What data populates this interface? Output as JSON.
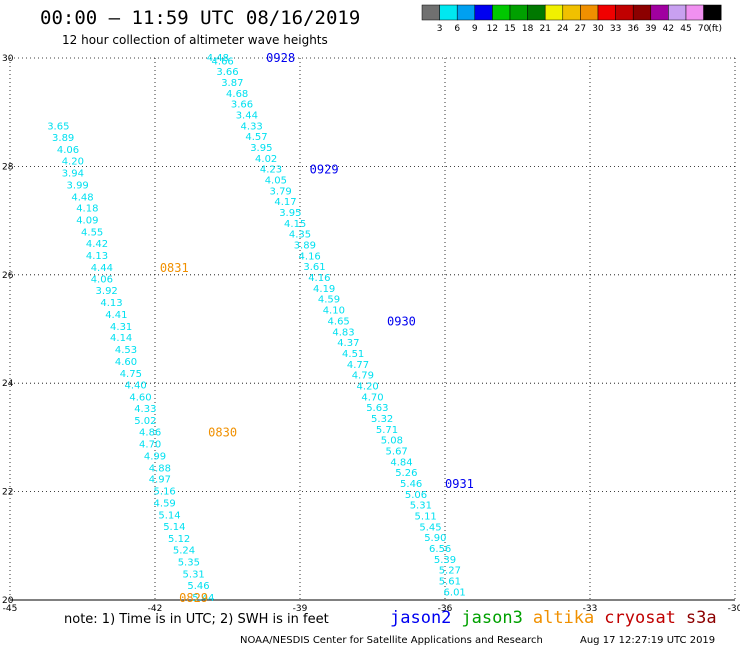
{
  "header": {
    "title": "00:00 – 11:59 UTC 08/16/2019",
    "subtitle": "12 hour collection of altimeter wave heights"
  },
  "color_scale": {
    "colors": [
      "#707070",
      "#00e8f0",
      "#00a0f0",
      "#0000f0",
      "#00c800",
      "#00a000",
      "#007800",
      "#f0f000",
      "#f0c000",
      "#f09000",
      "#f00000",
      "#c00000",
      "#8c0000",
      "#a000a0",
      "#c8a0f0",
      "#f090f0",
      "#000000"
    ],
    "labels": [
      "3",
      "6",
      "9",
      "12",
      "15",
      "18",
      "21",
      "24",
      "27",
      "30",
      "33",
      "36",
      "39",
      "42",
      "45",
      "70"
    ],
    "unit": "(ft)"
  },
  "chart_data": {
    "type": "scatter",
    "xlim": [
      -45,
      -30
    ],
    "ylim": [
      20,
      30
    ],
    "xticks": [
      "-45",
      "-42",
      "-39",
      "-36",
      "-33",
      "-30"
    ],
    "yticks": [
      "30",
      "28",
      "26",
      "24",
      "22",
      "20"
    ],
    "grid": true,
    "marker_color": "#00e0f0",
    "series": [
      {
        "name": "altika",
        "color": "#f09000",
        "points": [
          {
            "lon": -41.0,
            "lat": 20.04,
            "swh": "5.44"
          },
          {
            "lon": -41.1,
            "lat": 20.26,
            "swh": "5.46"
          },
          {
            "lon": -41.2,
            "lat": 20.47,
            "swh": "5.31"
          },
          {
            "lon": -41.3,
            "lat": 20.69,
            "swh": "5.35"
          },
          {
            "lon": -41.4,
            "lat": 20.91,
            "swh": "5.24"
          },
          {
            "lon": -41.5,
            "lat": 21.13,
            "swh": "5.12"
          },
          {
            "lon": -41.6,
            "lat": 21.35,
            "swh": "5.14"
          },
          {
            "lon": -41.7,
            "lat": 21.56,
            "swh": "5.14"
          },
          {
            "lon": -41.8,
            "lat": 21.78,
            "swh": "4.59"
          },
          {
            "lon": -41.8,
            "lat": 22.0,
            "swh": "5.16"
          },
          {
            "lon": -41.9,
            "lat": 22.22,
            "swh": "4.97"
          },
          {
            "lon": -41.9,
            "lat": 22.43,
            "swh": "4.88"
          },
          {
            "lon": -42.0,
            "lat": 22.65,
            "swh": "4.99"
          },
          {
            "lon": -42.1,
            "lat": 22.87,
            "swh": "4.70"
          },
          {
            "lon": -42.1,
            "lat": 23.09,
            "swh": "4.86"
          },
          {
            "lon": -42.2,
            "lat": 23.3,
            "swh": "5.02"
          },
          {
            "lon": -42.2,
            "lat": 23.52,
            "swh": "4.33"
          },
          {
            "lon": -42.3,
            "lat": 23.74,
            "swh": "4.60"
          },
          {
            "lon": -42.4,
            "lat": 23.96,
            "swh": "4.40"
          },
          {
            "lon": -42.5,
            "lat": 24.17,
            "swh": "4.75"
          },
          {
            "lon": -42.6,
            "lat": 24.39,
            "swh": "4.60"
          },
          {
            "lon": -42.6,
            "lat": 24.61,
            "swh": "4.53"
          },
          {
            "lon": -42.7,
            "lat": 24.83,
            "swh": "4.14"
          },
          {
            "lon": -42.7,
            "lat": 25.04,
            "swh": "4.31"
          },
          {
            "lon": -42.8,
            "lat": 25.26,
            "swh": "4.41"
          },
          {
            "lon": -42.9,
            "lat": 25.48,
            "swh": "4.13"
          },
          {
            "lon": -43.0,
            "lat": 25.7,
            "swh": "3.92"
          },
          {
            "lon": -43.1,
            "lat": 25.91,
            "swh": "4.06"
          },
          {
            "lon": -43.1,
            "lat": 26.13,
            "swh": "4.44"
          },
          {
            "lon": -43.2,
            "lat": 26.35,
            "swh": "4.13"
          },
          {
            "lon": -43.2,
            "lat": 26.57,
            "swh": "4.42"
          },
          {
            "lon": -43.3,
            "lat": 26.78,
            "swh": "4.55"
          },
          {
            "lon": -43.4,
            "lat": 27.0,
            "swh": "4.09"
          },
          {
            "lon": -43.4,
            "lat": 27.22,
            "swh": "4.18"
          },
          {
            "lon": -43.5,
            "lat": 27.43,
            "swh": "4.48"
          },
          {
            "lon": -43.6,
            "lat": 27.65,
            "swh": "3.99"
          },
          {
            "lon": -43.7,
            "lat": 27.87,
            "swh": "3.94"
          },
          {
            "lon": -43.7,
            "lat": 28.09,
            "swh": "4.20"
          },
          {
            "lon": -43.8,
            "lat": 28.3,
            "swh": "4.06"
          },
          {
            "lon": -43.9,
            "lat": 28.52,
            "swh": "3.89"
          },
          {
            "lon": -44.0,
            "lat": 28.74,
            "swh": "3.65"
          }
        ],
        "time_labels": [
          {
            "text": "0829",
            "lon": -41.5,
            "lat": 20.04
          },
          {
            "text": "0830",
            "lon": -40.9,
            "lat": 23.09
          },
          {
            "text": "0831",
            "lon": -41.9,
            "lat": 26.13
          }
        ]
      },
      {
        "name": "jason2",
        "color": "#0000f0",
        "points": [
          {
            "lon": -35.8,
            "lat": 20.14,
            "swh": "6.01"
          },
          {
            "lon": -35.9,
            "lat": 20.34,
            "swh": "5.61"
          },
          {
            "lon": -35.9,
            "lat": 20.54,
            "swh": "5.27"
          },
          {
            "lon": -36.0,
            "lat": 20.74,
            "swh": "5.39"
          },
          {
            "lon": -36.1,
            "lat": 20.94,
            "swh": "6.56"
          },
          {
            "lon": -36.2,
            "lat": 21.14,
            "swh": "5.90"
          },
          {
            "lon": -36.3,
            "lat": 21.34,
            "swh": "5.45"
          },
          {
            "lon": -36.4,
            "lat": 21.54,
            "swh": "5.11"
          },
          {
            "lon": -36.5,
            "lat": 21.74,
            "swh": "5.31"
          },
          {
            "lon": -36.6,
            "lat": 21.94,
            "swh": "5.06"
          },
          {
            "lon": -36.7,
            "lat": 22.14,
            "swh": "5.46"
          },
          {
            "lon": -36.8,
            "lat": 22.34,
            "swh": "5.26"
          },
          {
            "lon": -36.9,
            "lat": 22.54,
            "swh": "4.84"
          },
          {
            "lon": -37.0,
            "lat": 22.74,
            "swh": "5.67"
          },
          {
            "lon": -37.1,
            "lat": 22.94,
            "swh": "5.08"
          },
          {
            "lon": -37.2,
            "lat": 23.14,
            "swh": "5.71"
          },
          {
            "lon": -37.3,
            "lat": 23.34,
            "swh": "5.32"
          },
          {
            "lon": -37.4,
            "lat": 23.54,
            "swh": "5.63"
          },
          {
            "lon": -37.5,
            "lat": 23.74,
            "swh": "4.70"
          },
          {
            "lon": -37.6,
            "lat": 23.94,
            "swh": "4.20"
          },
          {
            "lon": -37.7,
            "lat": 24.14,
            "swh": "4.79"
          },
          {
            "lon": -37.8,
            "lat": 24.34,
            "swh": "4.77"
          },
          {
            "lon": -37.9,
            "lat": 24.54,
            "swh": "4.51"
          },
          {
            "lon": -38.0,
            "lat": 24.74,
            "swh": "4.37"
          },
          {
            "lon": -38.1,
            "lat": 24.94,
            "swh": "4.83"
          },
          {
            "lon": -38.2,
            "lat": 25.14,
            "swh": "4.65"
          },
          {
            "lon": -38.3,
            "lat": 25.34,
            "swh": "4.10"
          },
          {
            "lon": -38.4,
            "lat": 25.54,
            "swh": "4.59"
          },
          {
            "lon": -38.5,
            "lat": 25.74,
            "swh": "4.19"
          },
          {
            "lon": -38.6,
            "lat": 25.94,
            "swh": "4.16"
          },
          {
            "lon": -38.7,
            "lat": 26.14,
            "swh": "3.61"
          },
          {
            "lon": -38.8,
            "lat": 26.34,
            "swh": "4.16"
          },
          {
            "lon": -38.9,
            "lat": 26.54,
            "swh": "3.89"
          },
          {
            "lon": -39.0,
            "lat": 26.74,
            "swh": "4.35"
          },
          {
            "lon": -39.1,
            "lat": 26.94,
            "swh": "4.15"
          },
          {
            "lon": -39.2,
            "lat": 27.14,
            "swh": "3.95"
          },
          {
            "lon": -39.3,
            "lat": 27.34,
            "swh": "4.17"
          },
          {
            "lon": -39.4,
            "lat": 27.54,
            "swh": "3.79"
          },
          {
            "lon": -39.5,
            "lat": 27.74,
            "swh": "4.05"
          },
          {
            "lon": -39.6,
            "lat": 27.94,
            "swh": "4.23"
          },
          {
            "lon": -39.7,
            "lat": 28.14,
            "swh": "4.02"
          },
          {
            "lon": -39.8,
            "lat": 28.34,
            "swh": "3.95"
          },
          {
            "lon": -39.9,
            "lat": 28.54,
            "swh": "4.57"
          },
          {
            "lon": -40.0,
            "lat": 28.74,
            "swh": "4.33"
          },
          {
            "lon": -40.1,
            "lat": 28.94,
            "swh": "3.44"
          },
          {
            "lon": -40.2,
            "lat": 29.14,
            "swh": "3.66"
          },
          {
            "lon": -40.3,
            "lat": 29.34,
            "swh": "4.68"
          },
          {
            "lon": -40.4,
            "lat": 29.54,
            "swh": "3.87"
          },
          {
            "lon": -40.5,
            "lat": 29.74,
            "swh": "3.66"
          },
          {
            "lon": -40.6,
            "lat": 29.94,
            "swh": "4.66"
          },
          {
            "lon": -40.7,
            "lat": 30.0,
            "swh": "4.48"
          }
        ],
        "time_labels": [
          {
            "text": "0928",
            "lon": -39.7,
            "lat": 30.0
          },
          {
            "text": "0929",
            "lon": -38.8,
            "lat": 27.94
          },
          {
            "text": "0930",
            "lon": -37.2,
            "lat": 25.14
          },
          {
            "text": "0931",
            "lon": -36.0,
            "lat": 22.14
          }
        ]
      }
    ]
  },
  "footer": {
    "note": "note: 1) Time is in UTC; 2) SWH is in feet",
    "satellites": [
      {
        "label": "jason2",
        "color": "#0000f0"
      },
      {
        "label": "jason3",
        "color": "#00a000"
      },
      {
        "label": "altika",
        "color": "#f09000"
      },
      {
        "label": "cryosat",
        "color": "#c00000"
      },
      {
        "label": "s3a",
        "color": "#8c0000"
      }
    ],
    "credit": "NOAA/NESDIS Center for Satellite Applications and Research",
    "timestamp": "Aug 17 12:27:19 UTC 2019"
  }
}
